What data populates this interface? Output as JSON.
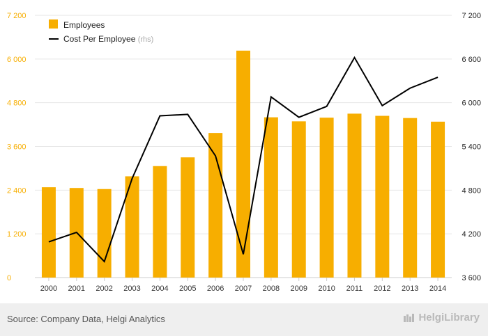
{
  "colors": {
    "bar": "#f7ae00",
    "line": "#000000",
    "axis_left": "#f7ae00",
    "axis_right": "#222222",
    "grid": "#e6e6e6"
  },
  "source": "Source: Company Data, Helgi Analytics",
  "brand": {
    "name": "HelgiLibrary",
    "icon": "library-logo-icon"
  },
  "chart_data": {
    "type": "bar",
    "categories": [
      "2000",
      "2001",
      "2002",
      "2003",
      "2004",
      "2005",
      "2006",
      "2007",
      "2008",
      "2009",
      "2010",
      "2011",
      "2012",
      "2013",
      "2014"
    ],
    "series": [
      {
        "name": "Employees",
        "type": "bar",
        "axis": "left",
        "values": [
          2480,
          2460,
          2430,
          2780,
          3060,
          3300,
          3970,
          6230,
          4400,
          4290,
          4390,
          4500,
          4440,
          4380,
          4280
        ]
      },
      {
        "name": "Cost Per Employee",
        "name_suffix": "(rhs)",
        "type": "line",
        "axis": "right",
        "values": [
          4090,
          4220,
          3820,
          4960,
          5820,
          5840,
          5270,
          3920,
          6080,
          5800,
          5950,
          6620,
          5960,
          6200,
          6350
        ]
      }
    ],
    "y_left": {
      "ticks": [
        "0",
        "1 200",
        "2 400",
        "3 600",
        "4 800",
        "6 000",
        "7 200"
      ],
      "lim": [
        0,
        7200
      ]
    },
    "y_right": {
      "ticks": [
        "3 600",
        "4 200",
        "4 800",
        "5 400",
        "6 000",
        "6 600",
        "7 200"
      ],
      "lim": [
        3600,
        7200
      ]
    },
    "grid": "horizontal",
    "legend": "top-left"
  }
}
